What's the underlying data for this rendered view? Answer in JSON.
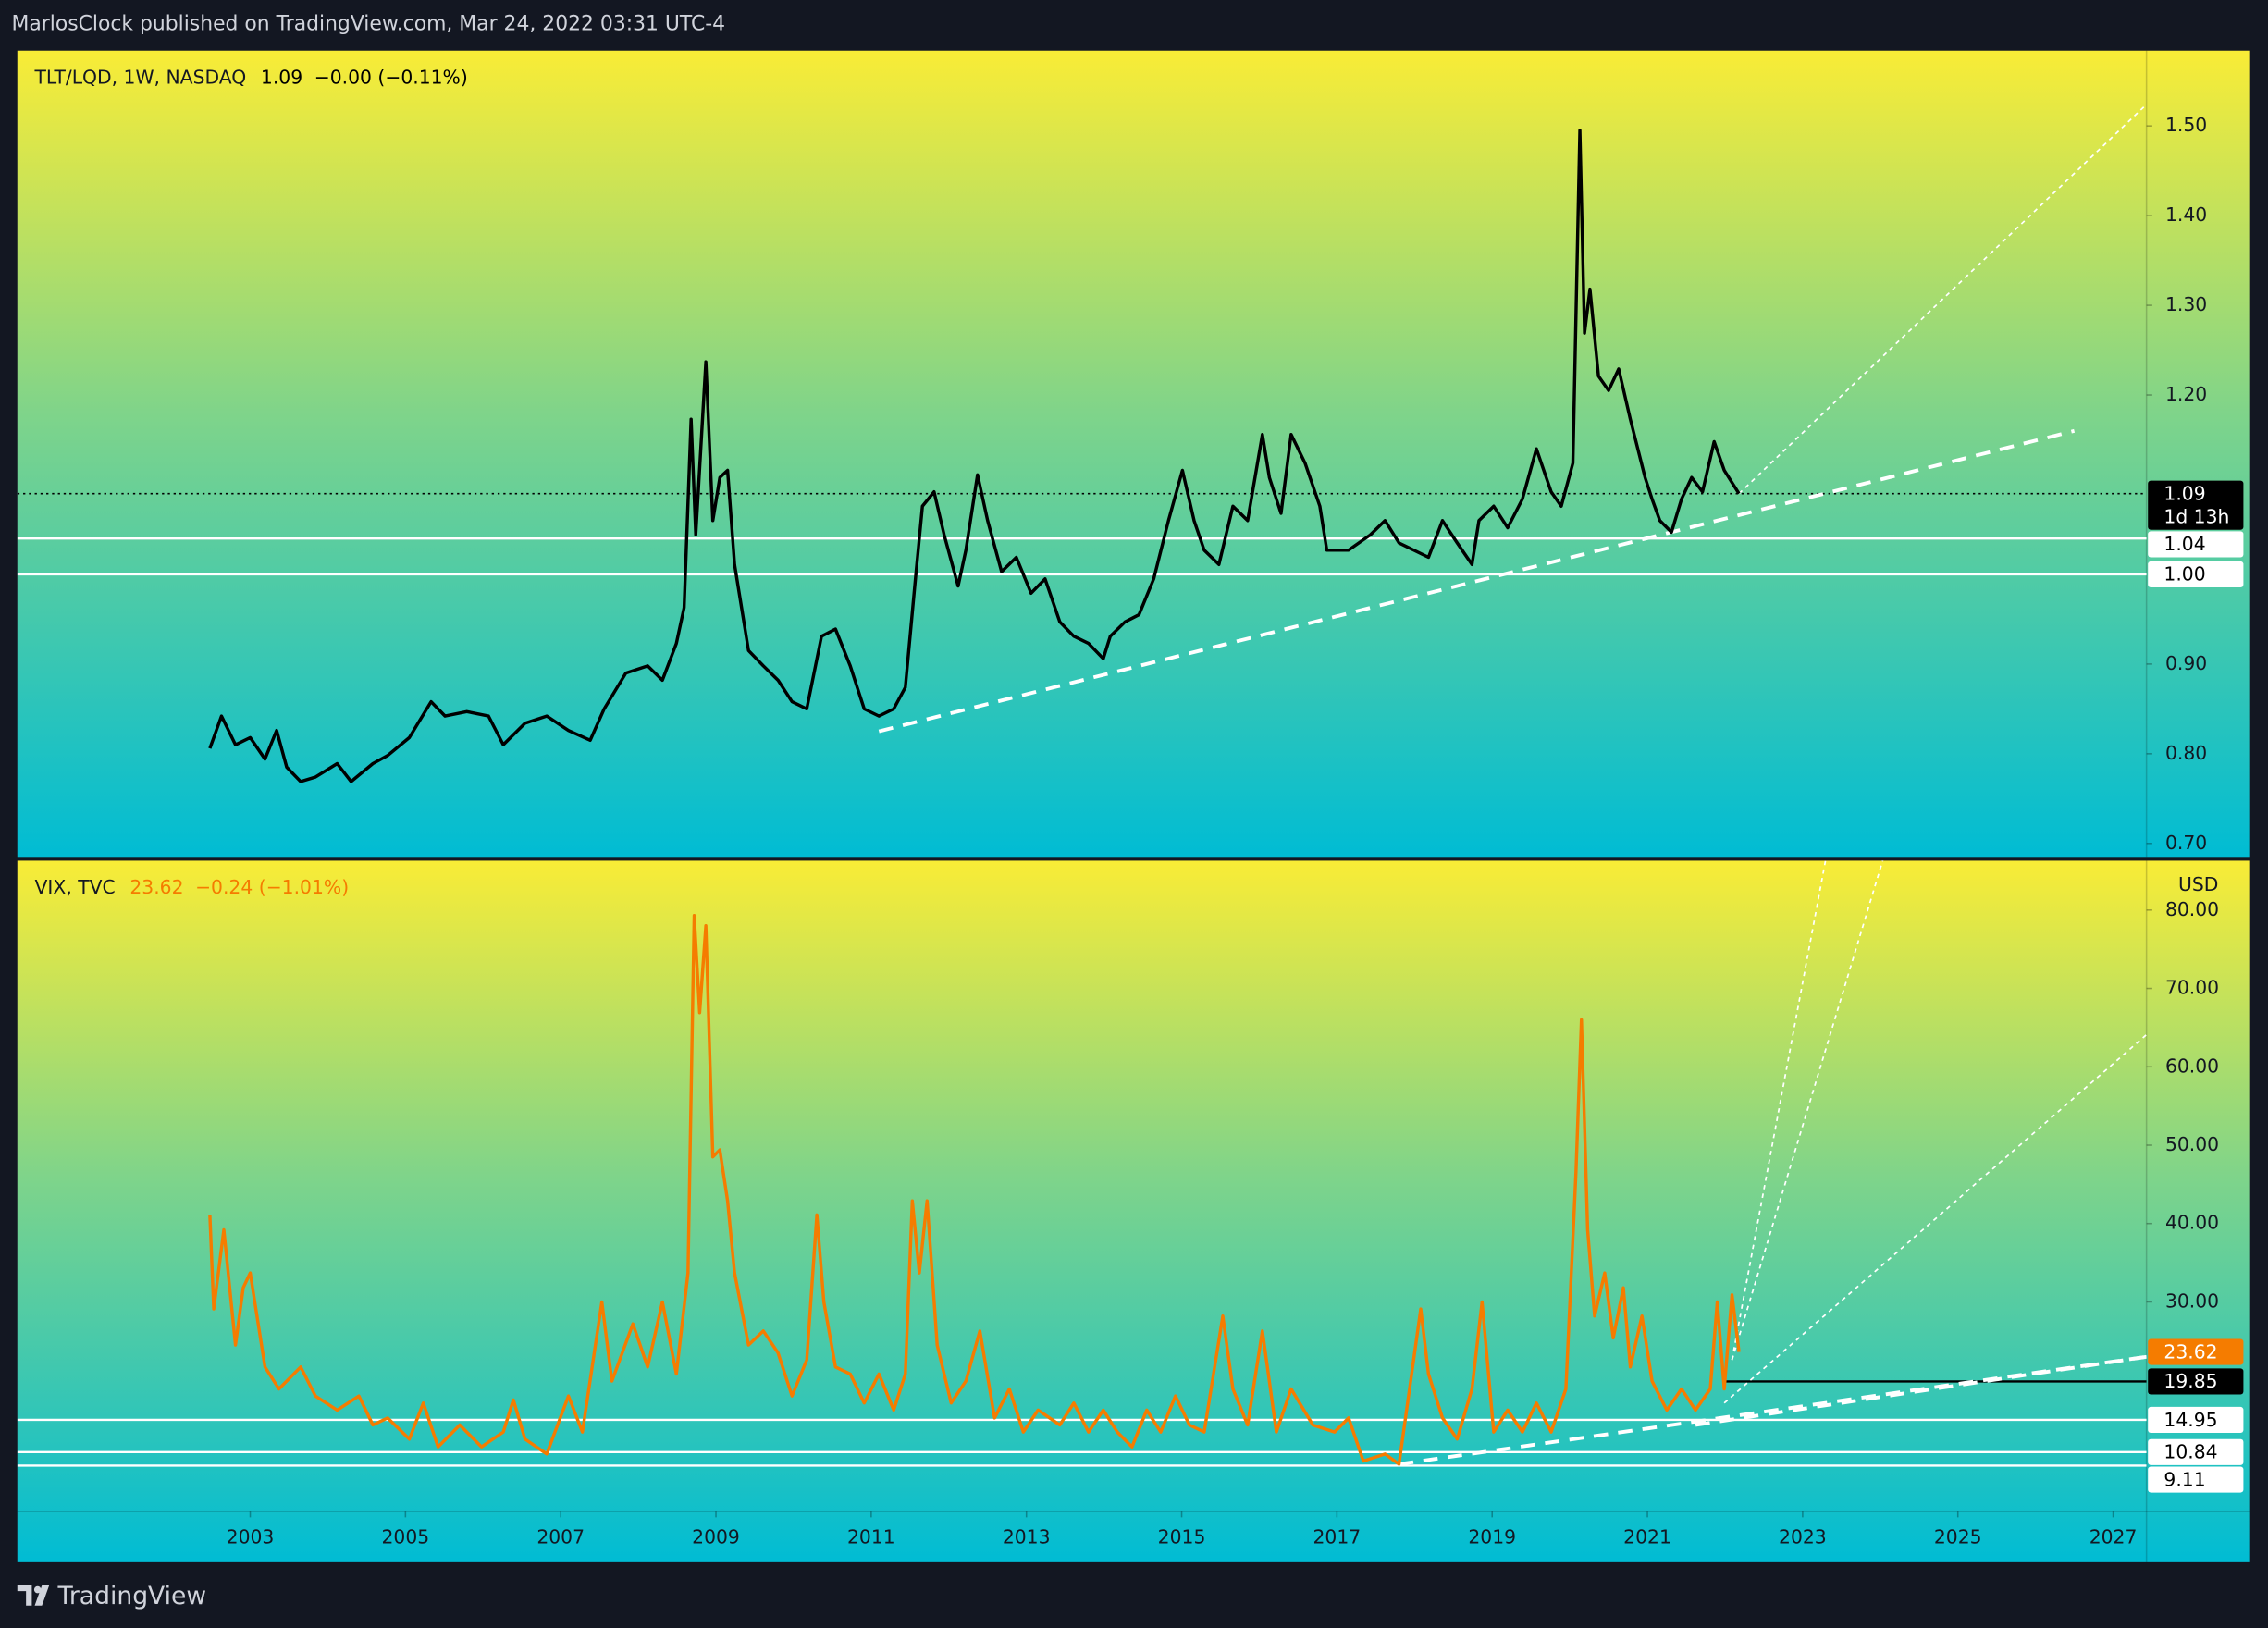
{
  "header": {
    "text": "MarlosClock published on TradingView.com, Mar 24, 2022 03:31 UTC-4"
  },
  "footer": {
    "brand": "TradingView"
  },
  "chart_data": [
    {
      "type": "line",
      "legend": {
        "last": "1.09",
        "last_color": "#000000",
        "change": "−0.00 (−0.11%)"
      },
      "x": [
        2002.48,
        2002.63,
        2002.81,
        2003.0,
        2003.19,
        2003.34,
        2003.47,
        2003.65,
        2003.84,
        2004.12,
        2004.3,
        2004.58,
        2004.77,
        2005.05,
        2005.33,
        2005.51,
        2005.79,
        2006.07,
        2006.26,
        2006.54,
        2006.82,
        2007.1,
        2007.38,
        2007.56,
        2007.84,
        2008.12,
        2008.31,
        2008.49,
        2008.59,
        2008.68,
        2008.74,
        2008.87,
        2008.96,
        2009.05,
        2009.15,
        2009.24,
        2009.33,
        2009.42,
        2009.61,
        2009.8,
        2009.98,
        2010.17,
        2010.36,
        2010.54,
        2010.73,
        2010.91,
        2011.1,
        2011.29,
        2011.44,
        2011.57,
        2011.66,
        2011.81,
        2011.94,
        2012.12,
        2012.22,
        2012.37,
        2012.5,
        2012.68,
        2012.87,
        2013.06,
        2013.24,
        2013.43,
        2013.61,
        2013.8,
        2013.99,
        2014.08,
        2014.27,
        2014.45,
        2014.64,
        2014.83,
        2015.01,
        2015.16,
        2015.29,
        2015.48,
        2015.66,
        2015.85,
        2016.04,
        2016.13,
        2016.28,
        2016.41,
        2016.59,
        2016.78,
        2016.87,
        2017.15,
        2017.43,
        2017.62,
        2017.8,
        2017.99,
        2018.18,
        2018.36,
        2018.55,
        2018.74,
        2018.83,
        2019.02,
        2019.2,
        2019.39,
        2019.57,
        2019.76,
        2019.89,
        2020.04,
        2020.13,
        2020.19,
        2020.26,
        2020.37,
        2020.5,
        2020.63,
        2020.78,
        2020.97,
        2021.06,
        2021.16,
        2021.31,
        2021.44,
        2021.57,
        2021.71,
        2021.86,
        2021.99,
        2022.18
      ],
      "series": [
        {
          "name": "TLT/LQD, 1W, NASDAQ",
          "color": "#000000",
          "values": [
            0.806,
            0.842,
            0.81,
            0.818,
            0.794,
            0.826,
            0.785,
            0.769,
            0.774,
            0.789,
            0.769,
            0.789,
            0.798,
            0.818,
            0.858,
            0.842,
            0.847,
            0.842,
            0.81,
            0.834,
            0.842,
            0.826,
            0.815,
            0.85,
            0.89,
            0.898,
            0.882,
            0.923,
            0.963,
            1.173,
            1.044,
            1.237,
            1.06,
            1.108,
            1.116,
            1.011,
            0.963,
            0.915,
            0.898,
            0.882,
            0.858,
            0.85,
            0.931,
            0.939,
            0.898,
            0.85,
            0.842,
            0.85,
            0.874,
            0.995,
            1.076,
            1.092,
            1.044,
            0.987,
            1.027,
            1.111,
            1.06,
            1.003,
            1.019,
            0.979,
            0.995,
            0.947,
            0.931,
            0.923,
            0.906,
            0.931,
            0.947,
            0.955,
            0.995,
            1.06,
            1.116,
            1.06,
            1.027,
            1.011,
            1.076,
            1.06,
            1.156,
            1.108,
            1.068,
            1.156,
            1.124,
            1.076,
            1.027,
            1.027,
            1.044,
            1.06,
            1.035,
            1.027,
            1.019,
            1.06,
            1.035,
            1.011,
            1.06,
            1.076,
            1.052,
            1.084,
            1.14,
            1.092,
            1.076,
            1.124,
            1.495,
            1.269,
            1.318,
            1.221,
            1.205,
            1.229,
            1.173,
            1.108,
            1.084,
            1.06,
            1.047,
            1.084,
            1.108,
            1.092,
            1.148,
            1.116,
            1.09
          ]
        }
      ],
      "xlim": [
        2000.0,
        2027.43
      ],
      "ylim": [
        0.684,
        1.584
      ],
      "yticks": [
        {
          "value": 0.7,
          "label": "0.70"
        },
        {
          "value": 0.8,
          "label": "0.80"
        },
        {
          "value": 0.9,
          "label": "0.90"
        },
        {
          "value": 1.2,
          "label": "1.20"
        },
        {
          "value": 1.3,
          "label": "1.30"
        },
        {
          "value": 1.4,
          "label": "1.40"
        },
        {
          "value": 1.5,
          "label": "1.50"
        }
      ],
      "price_lines": [
        {
          "value": 1.09,
          "label": "1.09",
          "countdown": "1d 13h",
          "style": "dotted",
          "color": "#000000",
          "box": "#000000",
          "text_color": "#ffffff"
        },
        {
          "value": 1.04,
          "label": "1.04",
          "style": "solid",
          "color": "#ffffff",
          "box": "#ffffff",
          "text_color": "#000000"
        },
        {
          "value": 1,
          "label": "1.00",
          "style": "solid",
          "color": "#ffffff",
          "box": "#ffffff",
          "text_color": "#000000"
        }
      ],
      "drawings": [
        {
          "style": "dashed",
          "x": [
            2011.1,
            2026.5
          ],
          "y": [
            0.825,
            1.16
          ]
        },
        {
          "style": "dotted",
          "x": [
            2022.18,
            2027.43
          ],
          "y": [
            1.09,
            1.524
          ]
        }
      ]
    },
    {
      "type": "line",
      "legend": {
        "last": "23.62",
        "last_color": "#f57c00",
        "change": "−0.24 (−1.01%)"
      },
      "axis_unit": "USD",
      "x": [
        2002.48,
        2002.53,
        2002.66,
        2002.81,
        2002.91,
        2003.0,
        2003.19,
        2003.37,
        2003.65,
        2003.84,
        2004.12,
        2004.4,
        2004.58,
        2004.77,
        2005.05,
        2005.23,
        2005.42,
        2005.7,
        2005.98,
        2006.26,
        2006.39,
        2006.54,
        2006.82,
        2007.1,
        2007.28,
        2007.53,
        2007.66,
        2007.93,
        2008.12,
        2008.31,
        2008.49,
        2008.64,
        2008.72,
        2008.79,
        2008.87,
        2008.96,
        2009.05,
        2009.15,
        2009.24,
        2009.42,
        2009.61,
        2009.8,
        2009.98,
        2010.17,
        2010.3,
        2010.39,
        2010.54,
        2010.73,
        2010.91,
        2011.1,
        2011.29,
        2011.44,
        2011.53,
        2011.62,
        2011.72,
        2011.85,
        2012.03,
        2012.22,
        2012.4,
        2012.59,
        2012.78,
        2012.96,
        2013.15,
        2013.43,
        2013.61,
        2013.8,
        2013.99,
        2014.17,
        2014.36,
        2014.55,
        2014.73,
        2014.92,
        2015.1,
        2015.29,
        2015.53,
        2015.66,
        2015.85,
        2016.04,
        2016.22,
        2016.41,
        2016.69,
        2016.97,
        2017.15,
        2017.34,
        2017.62,
        2017.8,
        2018.08,
        2018.18,
        2018.36,
        2018.55,
        2018.74,
        2018.87,
        2019.02,
        2019.2,
        2019.39,
        2019.57,
        2019.76,
        2019.95,
        2020.08,
        2020.15,
        2020.23,
        2020.32,
        2020.45,
        2020.56,
        2020.69,
        2020.78,
        2020.93,
        2021.06,
        2021.25,
        2021.44,
        2021.62,
        2021.81,
        2021.9,
        2021.99,
        2022.09,
        2022.18
      ],
      "series": [
        {
          "name": "VIX, TVC",
          "color": "#f57c00",
          "values": [
            41.1,
            29.1,
            39.2,
            24.5,
            31.8,
            33.7,
            21.7,
            18.9,
            21.7,
            18.0,
            16.2,
            18.0,
            14.3,
            15.2,
            12.5,
            17.1,
            11.5,
            14.3,
            11.5,
            13.4,
            17.5,
            12.5,
            10.6,
            18.0,
            13.4,
            30.0,
            19.9,
            27.2,
            21.7,
            30.0,
            20.8,
            33.7,
            79.3,
            66.9,
            78.0,
            48.5,
            49.4,
            42.9,
            33.7,
            24.5,
            26.3,
            23.5,
            18.0,
            22.6,
            41.1,
            30.0,
            21.7,
            20.8,
            17.1,
            20.8,
            16.2,
            20.8,
            42.9,
            33.7,
            42.9,
            24.5,
            17.1,
            19.9,
            26.3,
            15.2,
            18.9,
            13.4,
            16.2,
            14.3,
            17.1,
            13.4,
            16.2,
            13.4,
            11.5,
            16.2,
            13.4,
            18.0,
            14.3,
            13.4,
            28.2,
            18.9,
            14.3,
            26.3,
            13.4,
            18.9,
            14.3,
            13.4,
            15.2,
            9.7,
            10.6,
            9.3,
            29.1,
            20.8,
            15.2,
            12.5,
            18.9,
            30.0,
            13.4,
            16.2,
            13.4,
            17.1,
            13.4,
            18.9,
            46.6,
            66.0,
            39.2,
            28.2,
            33.7,
            25.4,
            31.8,
            21.7,
            28.2,
            19.9,
            16.2,
            18.9,
            16.2,
            18.9,
            30.0,
            18.9,
            30.9,
            23.62
          ]
        }
      ],
      "xlim": [
        2000.0,
        2027.43
      ],
      "xticks": [
        2003,
        2005,
        2007,
        2009,
        2011,
        2013,
        2015,
        2017,
        2019,
        2021,
        2023,
        2025,
        2027
      ],
      "ylim": [
        3.25,
        86.3
      ],
      "yticks": [
        {
          "value": 30,
          "label": "30.00"
        },
        {
          "value": 40,
          "label": "40.00"
        },
        {
          "value": 50,
          "label": "50.00"
        },
        {
          "value": 60,
          "label": "60.00"
        },
        {
          "value": 70,
          "label": "70.00"
        },
        {
          "value": 80,
          "label": "80.00"
        }
      ],
      "price_lines": [
        {
          "value": 23.62,
          "label": "23.62",
          "box": "#f57c00",
          "text_color": "#ffffff"
        },
        {
          "value": 19.85,
          "label": "19.85",
          "style": "solid",
          "from": 2021.99,
          "color": "#000000",
          "box": "#000000",
          "text_color": "#ffffff"
        },
        {
          "value": 14.95,
          "label": "14.95",
          "style": "solid",
          "color": "#ffffff",
          "box": "#ffffff",
          "text_color": "#000000"
        },
        {
          "value": 10.84,
          "label": "10.84",
          "style": "solid",
          "color": "#ffffff",
          "box": "#ffffff",
          "text_color": "#000000"
        },
        {
          "value": 9.11,
          "label": "9.11",
          "style": "solid",
          "color": "#ffffff",
          "box": "#ffffff",
          "text_color": "#000000"
        }
      ],
      "drawings": [
        {
          "style": "dashed",
          "x": [
            2017.8,
            2027.43
          ],
          "y": [
            9.3,
            23.0
          ]
        },
        {
          "style": "dashed",
          "x": [
            2021.62,
            2027.43
          ],
          "y": [
            14.3,
            23.0
          ]
        },
        {
          "style": "dotted",
          "x": [
            2021.99,
            2027.43
          ],
          "y": [
            17.1,
            64.1
          ]
        },
        {
          "style": "dotted",
          "x": [
            2022.09,
            2023.3
          ],
          "y": [
            22.6,
            86.6
          ]
        },
        {
          "style": "dotted",
          "x": [
            2022.09,
            2024.04
          ],
          "y": [
            22.6,
            86.6
          ]
        }
      ]
    }
  ]
}
